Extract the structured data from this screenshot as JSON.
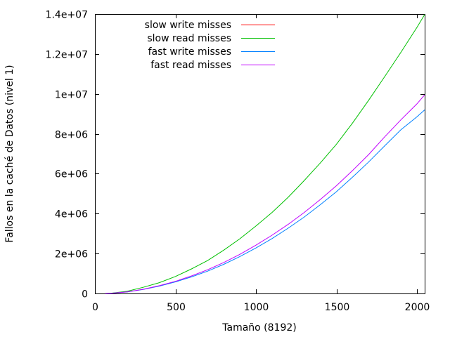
{
  "chart_data": {
    "type": "line",
    "title": "",
    "xlabel": "Tamaño (8192)",
    "ylabel": "Fallos en la caché de Datos (nivel 1)",
    "xlim": [
      0,
      2048
    ],
    "ylim": [
      0,
      14000000
    ],
    "xticks": [
      0,
      500,
      1000,
      1500,
      2000
    ],
    "xtick_labels": [
      "0",
      "500",
      "1000",
      "1500",
      "2000"
    ],
    "yticks": [
      0,
      2000000,
      4000000,
      6000000,
      8000000,
      10000000,
      12000000,
      14000000
    ],
    "ytick_labels": [
      "0",
      "2e+06",
      "4e+06",
      "6e+06",
      "8e+06",
      "1e+07",
      "1.2e+07",
      "1.4e+07"
    ],
    "grid": false,
    "legend_position": "top-left",
    "series": [
      {
        "name": "slow write misses",
        "color": "#ff0000",
        "x": [
          64
        ],
        "y": [
          0
        ]
      },
      {
        "name": "slow read misses",
        "color": "#00c000",
        "x": [
          64,
          100,
          200,
          300,
          400,
          500,
          600,
          700,
          800,
          900,
          1000,
          1100,
          1200,
          1300,
          1400,
          1500,
          1600,
          1700,
          1800,
          1900,
          2000,
          2048
        ],
        "y": [
          0,
          15000,
          110000,
          310000,
          540000,
          850000,
          1230000,
          1650000,
          2170000,
          2740000,
          3380000,
          4060000,
          4820000,
          5660000,
          6540000,
          7480000,
          8540000,
          9680000,
          10870000,
          12080000,
          13330000,
          13980000
        ]
      },
      {
        "name": "fast write misses",
        "color": "#0080ff",
        "x": [
          64,
          100,
          200,
          300,
          400,
          500,
          600,
          700,
          800,
          900,
          1000,
          1100,
          1200,
          1300,
          1400,
          1500,
          1600,
          1700,
          1800,
          1900,
          2000,
          2048
        ],
        "y": [
          0,
          10000,
          75000,
          200000,
          370000,
          580000,
          830000,
          1120000,
          1460000,
          1850000,
          2280000,
          2750000,
          3270000,
          3830000,
          4450000,
          5100000,
          5830000,
          6590000,
          7400000,
          8200000,
          8850000,
          9200000
        ]
      },
      {
        "name": "fast read misses",
        "color": "#c000ff",
        "x": [
          64,
          100,
          200,
          300,
          400,
          500,
          600,
          700,
          800,
          900,
          1000,
          1100,
          1200,
          1300,
          1400,
          1500,
          1600,
          1700,
          1800,
          1900,
          2000,
          2048
        ],
        "y": [
          0,
          11000,
          80000,
          210000,
          390000,
          610000,
          880000,
          1190000,
          1550000,
          1960000,
          2420000,
          2920000,
          3460000,
          4060000,
          4710000,
          5400000,
          6160000,
          6960000,
          7850000,
          8700000,
          9500000,
          9950000
        ]
      }
    ]
  }
}
